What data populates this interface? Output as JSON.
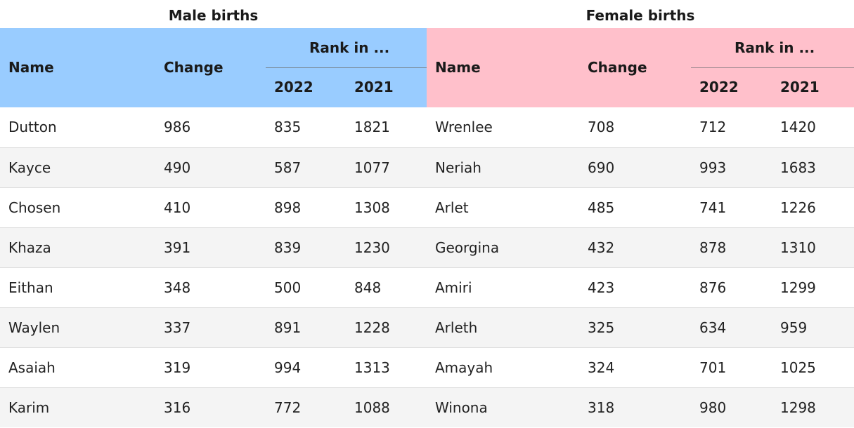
{
  "male": {
    "caption": "Male births",
    "header": {
      "name": "Name",
      "change": "Change",
      "rank_in": "Rank in ...",
      "year_a": "2022",
      "year_b": "2021"
    },
    "header_color": "#99ccff",
    "rows": [
      {
        "name": "Dutton",
        "change": "986",
        "rank_2022": "835",
        "rank_2021": "1821"
      },
      {
        "name": "Kayce",
        "change": "490",
        "rank_2022": "587",
        "rank_2021": "1077"
      },
      {
        "name": "Chosen",
        "change": "410",
        "rank_2022": "898",
        "rank_2021": "1308"
      },
      {
        "name": "Khaza",
        "change": "391",
        "rank_2022": "839",
        "rank_2021": "1230"
      },
      {
        "name": "Eithan",
        "change": "348",
        "rank_2022": "500",
        "rank_2021": "848"
      },
      {
        "name": "Waylen",
        "change": "337",
        "rank_2022": "891",
        "rank_2021": "1228"
      },
      {
        "name": "Asaiah",
        "change": "319",
        "rank_2022": "994",
        "rank_2021": "1313"
      },
      {
        "name": "Karim",
        "change": "316",
        "rank_2022": "772",
        "rank_2021": "1088"
      }
    ]
  },
  "female": {
    "caption": "Female births",
    "header": {
      "name": "Name",
      "change": "Change",
      "rank_in": "Rank in ...",
      "year_a": "2022",
      "year_b": "2021"
    },
    "header_color": "#ffc0cb",
    "rows": [
      {
        "name": "Wrenlee",
        "change": "708",
        "rank_2022": "712",
        "rank_2021": "1420"
      },
      {
        "name": "Neriah",
        "change": "690",
        "rank_2022": "993",
        "rank_2021": "1683"
      },
      {
        "name": "Arlet",
        "change": "485",
        "rank_2022": "741",
        "rank_2021": "1226"
      },
      {
        "name": "Georgina",
        "change": "432",
        "rank_2022": "878",
        "rank_2021": "1310"
      },
      {
        "name": "Amiri",
        "change": "423",
        "rank_2022": "876",
        "rank_2021": "1299"
      },
      {
        "name": "Arleth",
        "change": "325",
        "rank_2022": "634",
        "rank_2021": "959"
      },
      {
        "name": "Amayah",
        "change": "324",
        "rank_2022": "701",
        "rank_2021": "1025"
      },
      {
        "name": "Winona",
        "change": "318",
        "rank_2022": "980",
        "rank_2021": "1298"
      }
    ]
  },
  "row_stripe_color": "#f4f4f4"
}
